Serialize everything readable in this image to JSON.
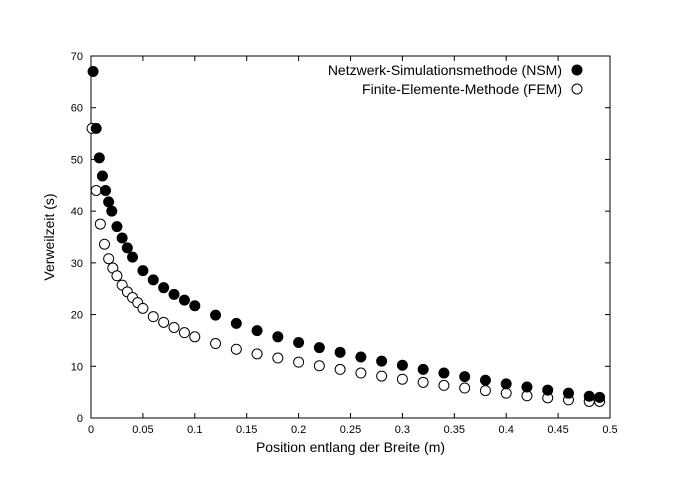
{
  "chart_data": {
    "type": "scatter",
    "xlabel": "Position entlang der Breite (m)",
    "ylabel": "Verweilzeit (s)",
    "xlim": [
      0,
      0.5
    ],
    "ylim": [
      0,
      70
    ],
    "x_ticks": [
      0,
      0.05,
      0.1,
      0.15,
      0.2,
      0.25,
      0.3,
      0.35,
      0.4,
      0.45,
      0.5
    ],
    "x_tick_labels": [
      "0",
      "0.05",
      "0.1",
      "0.15",
      "0.2",
      "0.25",
      "0.3",
      "0.35",
      "0.4",
      "0.45",
      "0.5"
    ],
    "y_ticks": [
      0,
      10,
      20,
      30,
      40,
      50,
      60,
      70
    ],
    "y_tick_labels": [
      "0",
      "10",
      "20",
      "30",
      "40",
      "50",
      "60",
      "70"
    ],
    "grid": false,
    "legend_position": "top-right",
    "series": [
      {
        "name": "Netzwerk-Simulationsmethode (NSM)",
        "marker": "filled-circle",
        "color": "#000000",
        "x": [
          0.002,
          0.005,
          0.008,
          0.011,
          0.014,
          0.017,
          0.02,
          0.025,
          0.03,
          0.035,
          0.04,
          0.05,
          0.06,
          0.07,
          0.08,
          0.09,
          0.1,
          0.12,
          0.14,
          0.16,
          0.18,
          0.2,
          0.22,
          0.24,
          0.26,
          0.28,
          0.3,
          0.32,
          0.34,
          0.36,
          0.38,
          0.4,
          0.42,
          0.44,
          0.46,
          0.48,
          0.49
        ],
        "y": [
          67,
          56,
          50.3,
          46.8,
          44,
          41.8,
          40,
          37,
          34.8,
          32.9,
          31.1,
          28.5,
          26.7,
          25.2,
          23.9,
          22.8,
          21.7,
          19.9,
          18.3,
          16.9,
          15.7,
          14.6,
          13.6,
          12.7,
          11.8,
          11,
          10.2,
          9.4,
          8.7,
          8,
          7.3,
          6.6,
          6,
          5.4,
          4.8,
          4.2,
          4
        ]
      },
      {
        "name": "Finite-Elemente-Methode (FEM)",
        "marker": "open-circle",
        "color": "#000000",
        "x": [
          0.001,
          0.005,
          0.009,
          0.013,
          0.017,
          0.021,
          0.025,
          0.03,
          0.035,
          0.04,
          0.045,
          0.05,
          0.06,
          0.07,
          0.08,
          0.09,
          0.1,
          0.12,
          0.14,
          0.16,
          0.18,
          0.2,
          0.22,
          0.24,
          0.26,
          0.28,
          0.3,
          0.32,
          0.34,
          0.36,
          0.38,
          0.4,
          0.42,
          0.44,
          0.46,
          0.48,
          0.49
        ],
        "y": [
          56,
          44,
          37.5,
          33.6,
          30.8,
          29,
          27.5,
          25.7,
          24.4,
          23.3,
          22.3,
          21.2,
          19.6,
          18.5,
          17.5,
          16.5,
          15.7,
          14.4,
          13.3,
          12.4,
          11.6,
          10.8,
          10.1,
          9.4,
          8.7,
          8.1,
          7.5,
          6.9,
          6.3,
          5.8,
          5.3,
          4.8,
          4.3,
          3.9,
          3.5,
          3.2,
          3.2
        ]
      }
    ]
  }
}
